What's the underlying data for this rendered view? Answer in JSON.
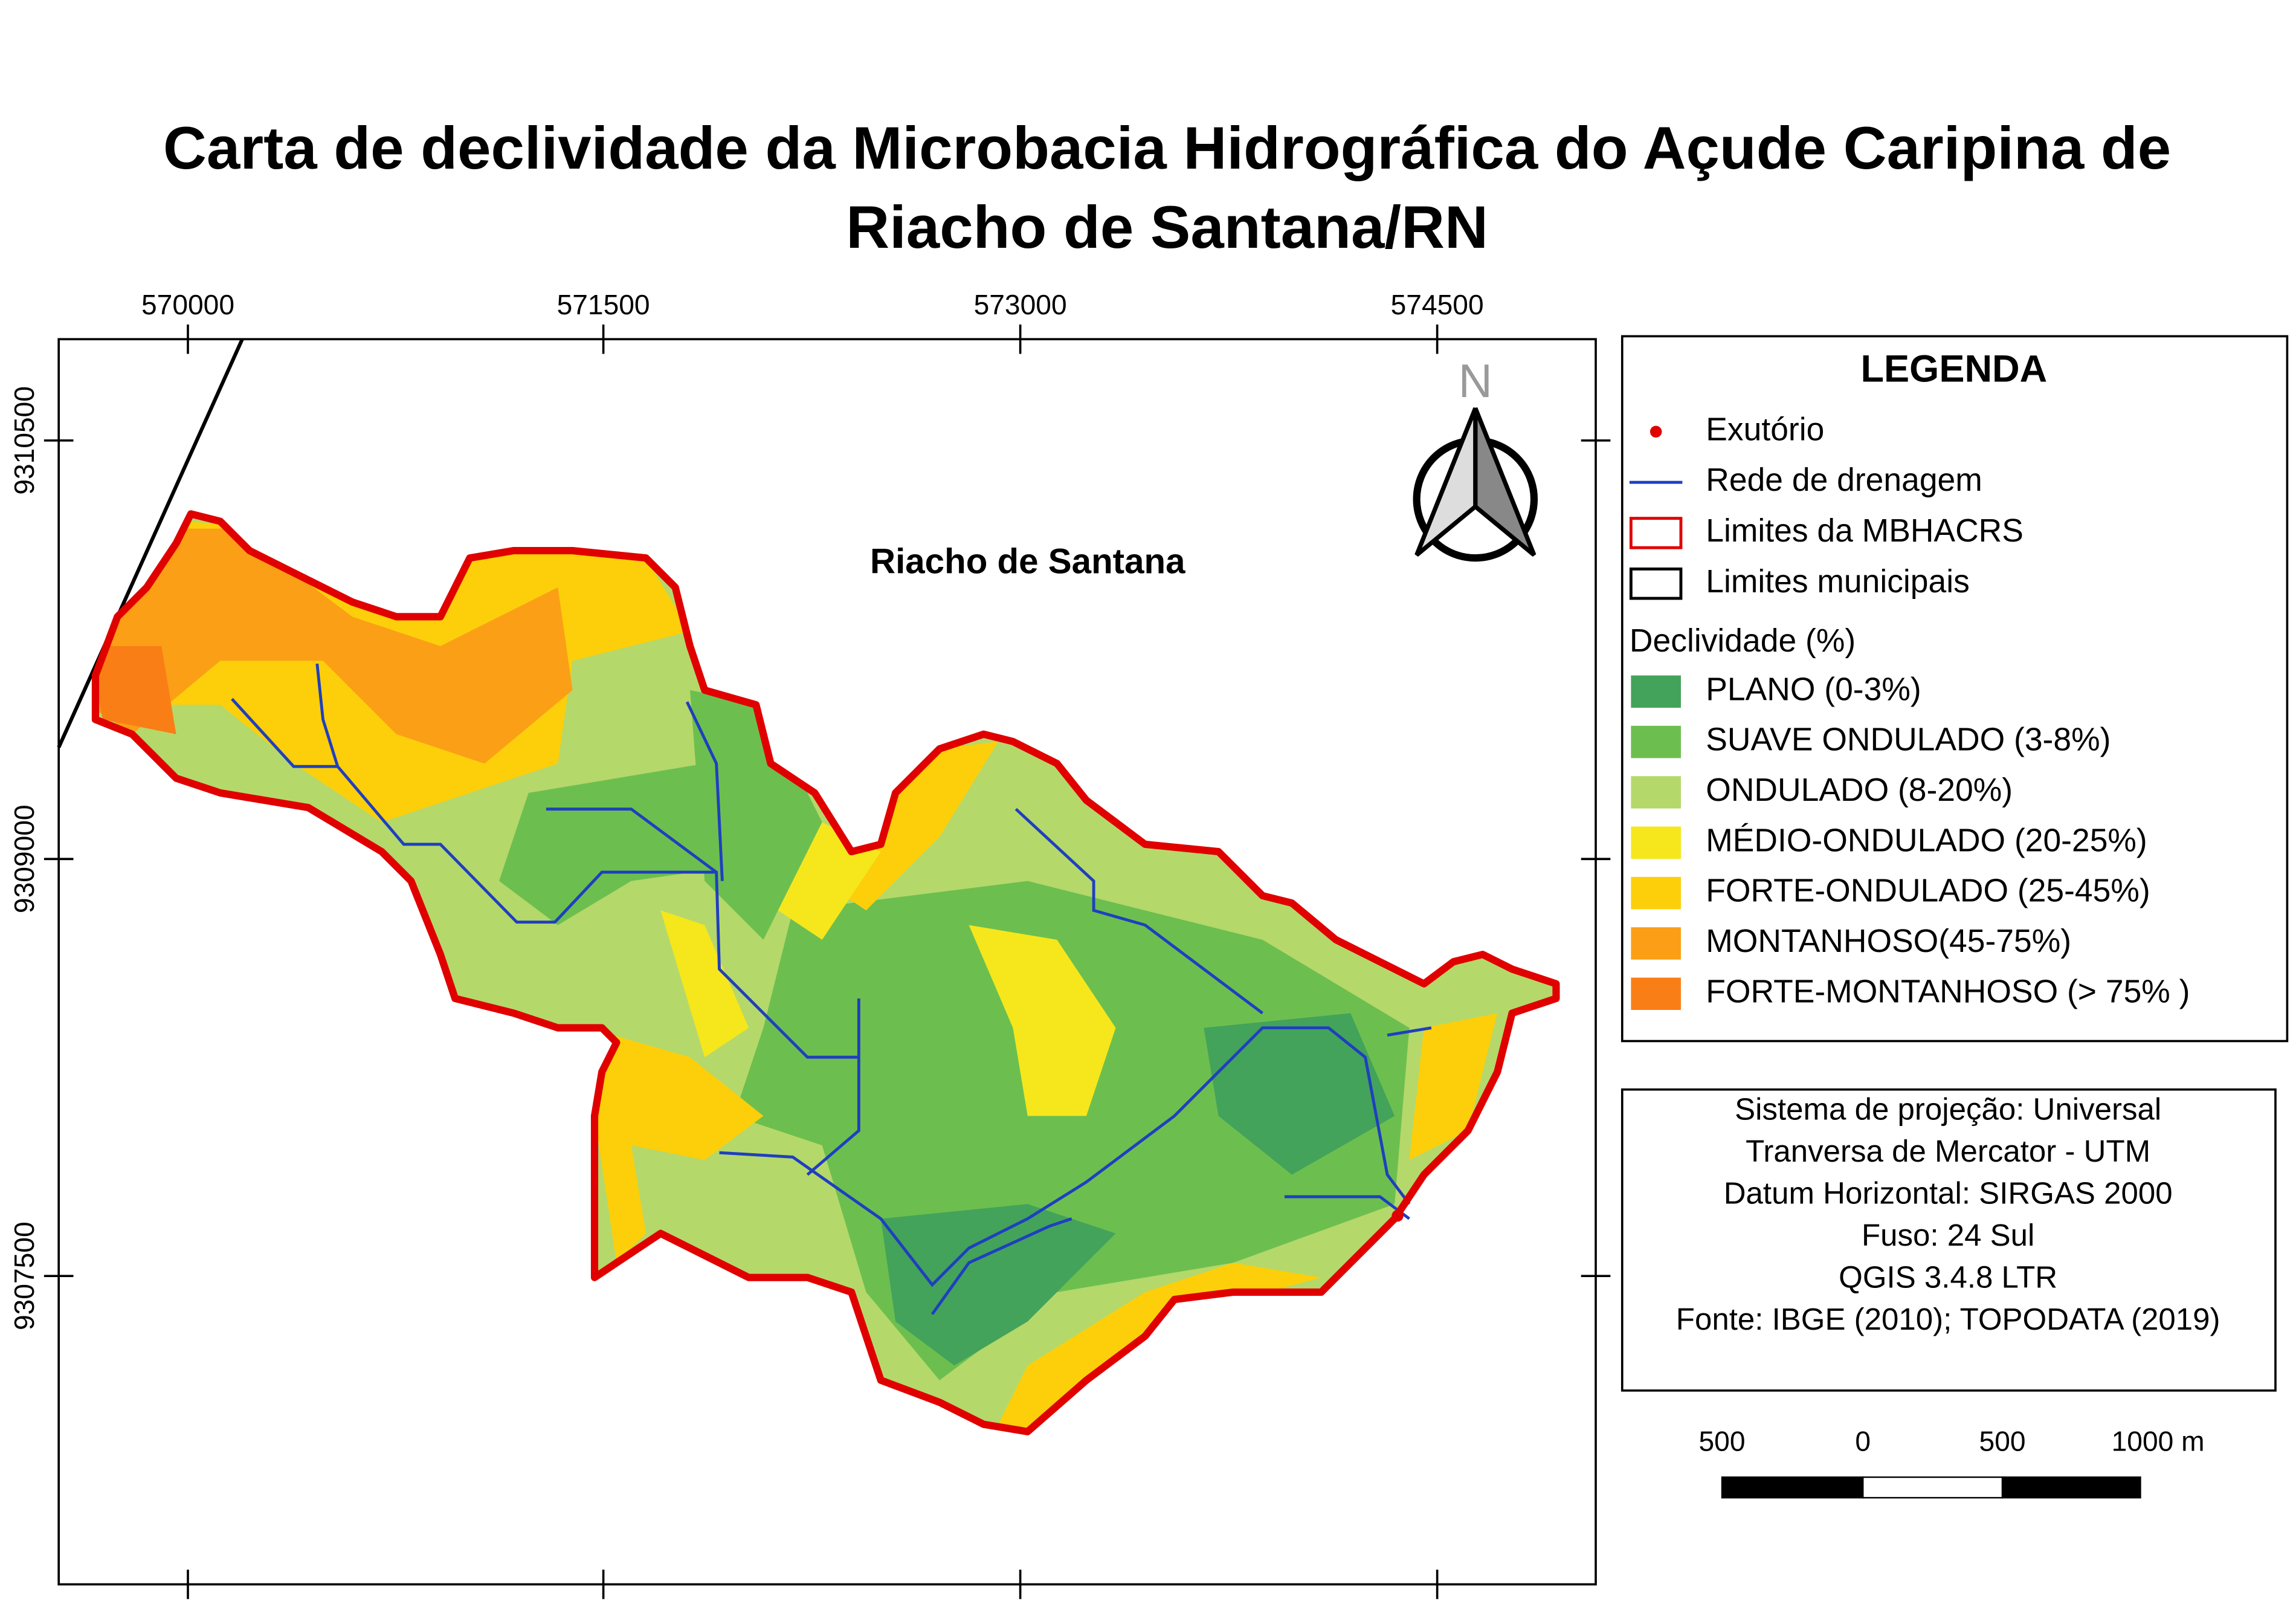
{
  "title": [
    "Carta de declividade da Microbacia Hidrográfica do Açude Caripina de",
    "Riacho de Santana/RN"
  ],
  "map": {
    "place_label": "Riacho de Santana",
    "north": "N",
    "x_ticks": [
      570000,
      571500,
      573000,
      574500
    ],
    "y_ticks": [
      9310500,
      9309000,
      9307500
    ]
  },
  "legend": {
    "title": "LEGENDA",
    "items": [
      {
        "label": "Exutório",
        "color": "#e00000",
        "symbol": "point"
      },
      {
        "label": "Rede de drenagem",
        "color": "#1f3fbf",
        "symbol": "line"
      },
      {
        "label": "Limites da MBHACRS",
        "color": "#e00000",
        "symbol": "box"
      },
      {
        "label": "Limites municipais",
        "color": "#000000",
        "symbol": "box"
      }
    ],
    "classes_title": "Declividade (%)",
    "classes": [
      {
        "label": "PLANO (0-3%)",
        "color": "#43a35a"
      },
      {
        "label": "SUAVE ONDULADO (3-8%)",
        "color": "#6cbf4f"
      },
      {
        "label": "ONDULADO (8-20%)",
        "color": "#b5d86a"
      },
      {
        "label": "MÉDIO-ONDULADO (20-25%)",
        "color": "#f5e71c"
      },
      {
        "label": "FORTE-ONDULADO (25-45%)",
        "color": "#fccf0a"
      },
      {
        "label": "MONTANHOSO(45-75%)",
        "color": "#fb9f16"
      },
      {
        "label": "FORTE-MONTANHOSO (> 75% )",
        "color": "#fa7e16"
      }
    ]
  },
  "info": [
    "Sistema de projeção: Universal",
    "Tranversa de Mercator - UTM",
    "Datum Horizontal: SIRGAS 2000",
    "Fuso: 24 Sul",
    "QGIS 3.4.8 LTR",
    "Fonte: IBGE (2010); TOPODATA (2019)"
  ],
  "scale_bar": [
    "500",
    "0",
    "500",
    "1000 m"
  ]
}
